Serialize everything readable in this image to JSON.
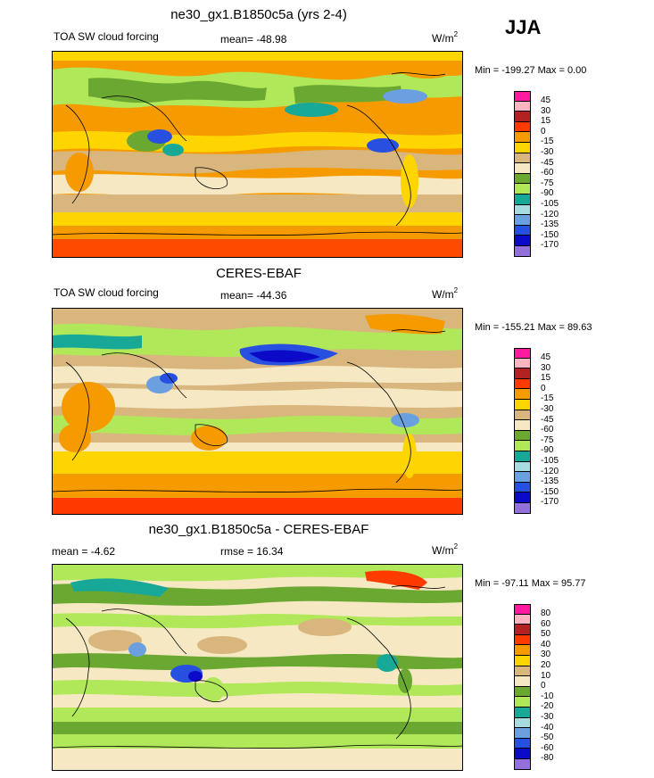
{
  "season": "JJA",
  "units_base": "W/m",
  "units_exp": "2",
  "panels": [
    {
      "title": "ne30_gx1.B1850c5a (yrs 2-4)",
      "left_label": "TOA SW cloud forcing",
      "center_label": "mean=  -48.98",
      "minmax": "Min = -199.27 Max =   0.00",
      "colorbar_labels": [
        "45",
        "30",
        "15",
        "0",
        "-15",
        "-30",
        "-45",
        "-60",
        "-75",
        "-90",
        "-105",
        "-120",
        "-135",
        "-150",
        "-170"
      ],
      "colorbar_colors": [
        "#ff1aa0",
        "#ffb6c1",
        "#b22222",
        "#ff3b00",
        "#f59b00",
        "#ffd500",
        "#d8b67d",
        "#f5e8c2",
        "#6aa832",
        "#b0e85a",
        "#18a898",
        "#a8dce0",
        "#6aa0e0",
        "#2850e0",
        "#0a0ac8",
        "#9370db"
      ]
    },
    {
      "title": "CERES-EBAF",
      "left_label": "TOA SW cloud forcing",
      "center_label": "mean=  -44.36",
      "minmax": "Min = -155.21 Max =  89.63",
      "colorbar_labels": [
        "45",
        "30",
        "15",
        "0",
        "-15",
        "-30",
        "-45",
        "-60",
        "-75",
        "-90",
        "-105",
        "-120",
        "-135",
        "-150",
        "-170"
      ],
      "colorbar_colors": [
        "#ff1aa0",
        "#ffb6c1",
        "#b22222",
        "#ff3b00",
        "#f59b00",
        "#ffd500",
        "#d8b67d",
        "#f5e8c2",
        "#6aa832",
        "#b0e85a",
        "#18a898",
        "#a8dce0",
        "#6aa0e0",
        "#2850e0",
        "#0a0ac8",
        "#9370db"
      ]
    },
    {
      "title": "ne30_gx1.B1850c5a - CERES-EBAF",
      "left_label": "mean =  -4.62",
      "center_label": "rmse =  16.34",
      "minmax": "Min = -97.11 Max =  95.77",
      "colorbar_labels": [
        "80",
        "60",
        "50",
        "40",
        "30",
        "20",
        "10",
        "0",
        "-10",
        "-20",
        "-30",
        "-40",
        "-50",
        "-60",
        "-80"
      ],
      "colorbar_colors": [
        "#ff1aa0",
        "#ffb6c1",
        "#b22222",
        "#ff3b00",
        "#f59b00",
        "#ffd500",
        "#d8b67d",
        "#f5e8c2",
        "#6aa832",
        "#b0e85a",
        "#18a898",
        "#a8dce0",
        "#6aa0e0",
        "#2850e0",
        "#0a0ac8",
        "#9370db"
      ]
    }
  ]
}
